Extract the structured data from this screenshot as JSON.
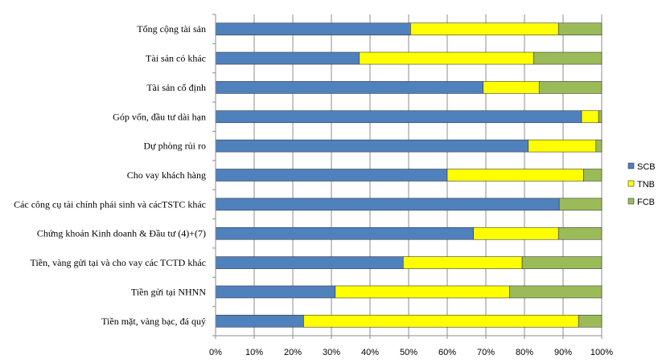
{
  "chart_data": {
    "type": "bar",
    "orientation": "horizontal",
    "stacked": "percent",
    "categories": [
      "Tổng cộng tài sản",
      "Tài sản có khác",
      "Tài sản cố định",
      "Góp vốn, đầu tư dài hạn",
      "Dự phòng rủi ro",
      "Cho vay khách hàng",
      "Các công cụ tài chính phái sinh và cácTSTC khác",
      "Chứng khoán Kinh doanh & Đầu tư (4)+(7)",
      "Tiền, vàng gửi tại và cho vay các TCTD khác",
      "Tiền gửi tại NHNN",
      "Tiền mặt, vàng bạc, đá quý"
    ],
    "series": [
      {
        "name": "SCB",
        "color": "#4F81BD",
        "values": [
          50.5,
          37.2,
          69.3,
          94.8,
          81.0,
          60.0,
          89.0,
          66.8,
          48.6,
          31.0,
          22.8
        ]
      },
      {
        "name": "TNB",
        "color": "#FFFF00",
        "values": [
          38.3,
          45.2,
          14.5,
          4.4,
          17.5,
          35.3,
          0.0,
          22.0,
          30.8,
          45.1,
          71.2
        ]
      },
      {
        "name": "FCB",
        "color": "#9BBB59",
        "values": [
          11.2,
          17.6,
          16.2,
          0.8,
          1.5,
          4.7,
          11.0,
          11.2,
          20.6,
          23.9,
          6.0
        ]
      }
    ],
    "x_ticks": [
      "0%",
      "10%",
      "20%",
      "30%",
      "40%",
      "50%",
      "60%",
      "70%",
      "80%",
      "90%",
      "100%"
    ],
    "xlim": [
      0,
      100
    ],
    "grid": "vertical",
    "legend_position": "right"
  }
}
